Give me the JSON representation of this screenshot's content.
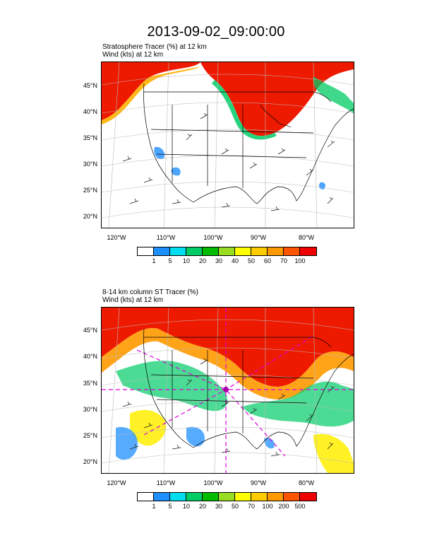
{
  "title": "2013-09-02_09:00:00",
  "panels": [
    {
      "label_line1": "Stratosphere Tracer   (%)     at   12 km",
      "label_line2": "Wind    (kts)     at   12 km",
      "lat_labels": [
        "45°N",
        "40°N",
        "35°N",
        "30°N",
        "25°N",
        "20°N"
      ],
      "lon_labels": [
        "120°W",
        "110°W",
        "100°W",
        "90°W",
        "80°W"
      ],
      "colorbar_colors": [
        "#ffffff",
        "#1e8fff",
        "#00ddee",
        "#00cc66",
        "#00bb00",
        "#99dd22",
        "#ffff00",
        "#ffcc00",
        "#ff9900",
        "#ff5500",
        "#ee0000"
      ],
      "colorbar_labels": [
        "1",
        "5",
        "10",
        "20",
        "30",
        "40",
        "50",
        "60",
        "70",
        "100"
      ]
    },
    {
      "label_line1": "8-14 km column ST Tracer   (%)",
      "label_line2": "Wind    (kts)     at   12 km",
      "lat_labels": [
        "45°N",
        "40°N",
        "35°N",
        "30°N",
        "25°N",
        "20°N"
      ],
      "lon_labels": [
        "120°W",
        "110°W",
        "100°W",
        "90°W",
        "80°W"
      ],
      "colorbar_colors": [
        "#ffffff",
        "#1e8fff",
        "#00ddee",
        "#00cc66",
        "#00bb00",
        "#99dd22",
        "#ffff00",
        "#ffcc00",
        "#ff9900",
        "#ff5500",
        "#ee0000"
      ],
      "colorbar_labels": [
        "1",
        "5",
        "10",
        "20",
        "30",
        "50",
        "70",
        "100",
        "200",
        "500"
      ]
    }
  ]
}
